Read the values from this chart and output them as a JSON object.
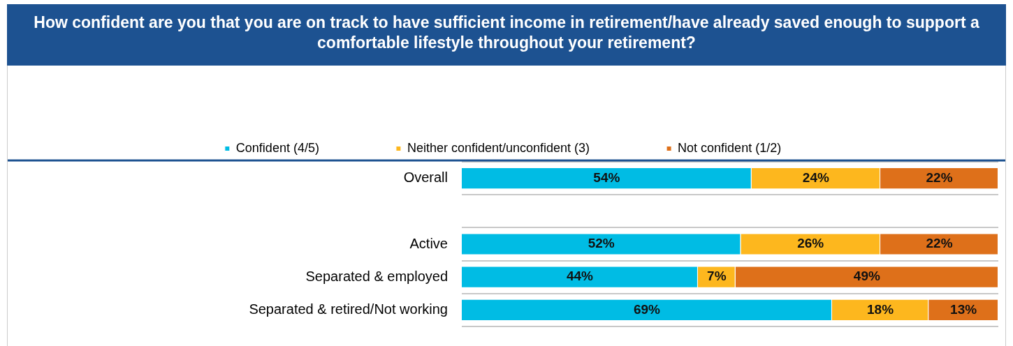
{
  "chart_data": {
    "type": "bar",
    "orientation": "horizontal",
    "stacked": true,
    "title": "How confident are you that you are on track to have sufficient income in retirement/have already saved enough to support a comfortable lifestyle throughout your retirement?",
    "categories": [
      "Overall",
      null,
      "Active",
      "Separated & employed",
      "Separated & retired/Not working"
    ],
    "series": [
      {
        "name": "Confident (4/5)",
        "color": "#00bce4",
        "values": [
          54,
          null,
          52,
          44,
          69
        ],
        "value_labels": [
          "54%",
          null,
          "52%",
          "44%",
          "69%"
        ]
      },
      {
        "name": "Neither confident/unconfident (3)",
        "color": "#fdb71e",
        "values": [
          24,
          null,
          26,
          7,
          18
        ],
        "value_labels": [
          "24%",
          null,
          "26%",
          "7%",
          "18%"
        ]
      },
      {
        "name": "Not confident (1/2)",
        "color": "#de701a",
        "values": [
          22,
          null,
          22,
          49,
          13
        ],
        "value_labels": [
          "22%",
          null,
          "22%",
          "49%",
          "13%"
        ]
      }
    ],
    "xlim": [
      0,
      100
    ],
    "tick_labels": "y",
    "grid": "y",
    "legend": "top"
  }
}
